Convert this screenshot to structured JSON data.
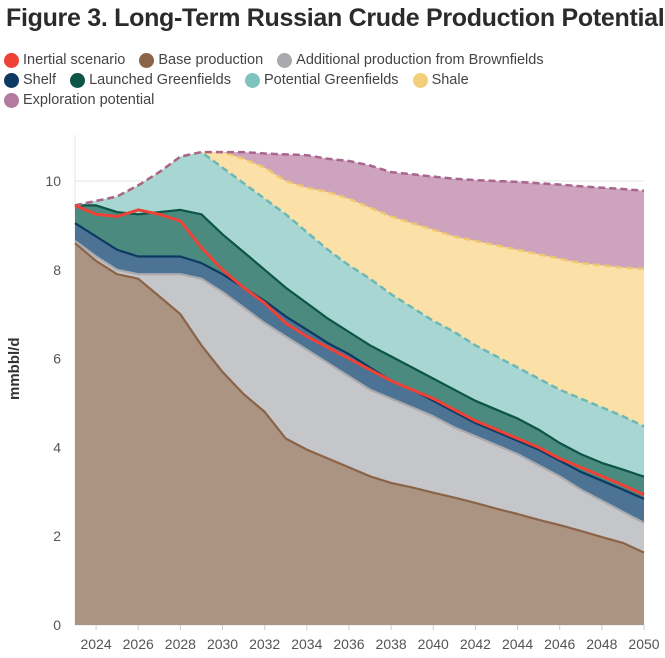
{
  "chart_data": {
    "type": "area",
    "title": "Figure 3. Long-Term Russian Crude Production Potential",
    "xlabel": "",
    "ylabel": "mmbbl/d",
    "xlim": [
      2023,
      2050
    ],
    "ylim": [
      0,
      10.8
    ],
    "x_ticks": [
      "2024",
      "2026",
      "2028",
      "2030",
      "2032",
      "2034",
      "2036",
      "2038",
      "2040",
      "2042",
      "2044",
      "2046",
      "2048",
      "2050"
    ],
    "y_ticks": [
      "0",
      "2",
      "4",
      "6",
      "8",
      "10"
    ],
    "grid": true,
    "legend_position": "top",
    "x": [
      2023,
      2024,
      2025,
      2026,
      2027,
      2028,
      2029,
      2030,
      2031,
      2032,
      2033,
      2034,
      2035,
      2036,
      2037,
      2038,
      2039,
      2040,
      2041,
      2042,
      2043,
      2044,
      2045,
      2046,
      2047,
      2048,
      2049,
      2050
    ],
    "stacked_tops_note": "values are cumulative top of each band",
    "series": [
      {
        "name": "Base production",
        "color": "#8b6448",
        "fill": "#ab9482",
        "values": [
          8.6,
          8.2,
          7.9,
          7.8,
          7.4,
          7.0,
          6.3,
          5.7,
          5.2,
          4.8,
          4.2,
          3.95,
          3.75,
          3.55,
          3.35,
          3.2,
          3.1,
          2.98,
          2.87,
          2.75,
          2.62,
          2.5,
          2.37,
          2.25,
          2.12,
          1.98,
          1.85,
          1.63
        ]
      },
      {
        "name": "Additional production from Brownfields",
        "color": "#a9aaae",
        "fill": "#c5c6c9",
        "values": [
          8.65,
          8.3,
          8.0,
          7.9,
          7.9,
          7.9,
          7.8,
          7.5,
          7.15,
          6.8,
          6.5,
          6.2,
          5.9,
          5.6,
          5.3,
          5.1,
          4.9,
          4.7,
          4.45,
          4.25,
          4.05,
          3.85,
          3.6,
          3.35,
          3.05,
          2.8,
          2.55,
          2.3
        ]
      },
      {
        "name": "Shelf",
        "color": "#0d3a63",
        "fill": "#4c7394",
        "values": [
          9.05,
          8.75,
          8.45,
          8.3,
          8.3,
          8.3,
          8.15,
          7.9,
          7.6,
          7.3,
          6.95,
          6.65,
          6.35,
          6.1,
          5.8,
          5.5,
          5.3,
          5.05,
          4.8,
          4.55,
          4.35,
          4.15,
          3.95,
          3.7,
          3.45,
          3.25,
          3.05,
          2.84
        ]
      },
      {
        "name": "Launched Greenfields",
        "color": "#0d5547",
        "fill": "#4a8a7f",
        "values": [
          9.45,
          9.45,
          9.3,
          9.25,
          9.3,
          9.35,
          9.25,
          8.8,
          8.4,
          8.0,
          7.6,
          7.25,
          6.9,
          6.6,
          6.3,
          6.05,
          5.8,
          5.55,
          5.3,
          5.05,
          4.85,
          4.65,
          4.4,
          4.1,
          3.85,
          3.65,
          3.5,
          3.34
        ]
      },
      {
        "name": "Potential Greenfields",
        "color": "#6cb8b4",
        "fill": "#a8d7d3",
        "values": [
          9.45,
          9.55,
          9.65,
          9.9,
          10.2,
          10.55,
          10.65,
          10.3,
          9.95,
          9.6,
          9.25,
          8.85,
          8.45,
          8.1,
          7.8,
          7.45,
          7.15,
          6.85,
          6.6,
          6.3,
          6.05,
          5.8,
          5.55,
          5.3,
          5.1,
          4.9,
          4.7,
          4.47
        ]
      },
      {
        "name": "Shale",
        "color": "#f0c870",
        "fill": "#fbe1a8",
        "values": [
          9.45,
          9.55,
          9.65,
          9.9,
          10.2,
          10.55,
          10.65,
          10.65,
          10.5,
          10.3,
          10.0,
          9.85,
          9.75,
          9.6,
          9.4,
          9.2,
          9.05,
          8.9,
          8.75,
          8.65,
          8.55,
          8.45,
          8.35,
          8.25,
          8.15,
          8.1,
          8.05,
          8.02
        ]
      },
      {
        "name": "Exploration potential",
        "color": "#a8668e",
        "fill": "#cda3bd",
        "values": [
          9.45,
          9.55,
          9.65,
          9.9,
          10.2,
          10.55,
          10.65,
          10.65,
          10.65,
          10.62,
          10.6,
          10.58,
          10.5,
          10.45,
          10.35,
          10.2,
          10.15,
          10.1,
          10.05,
          10.02,
          10.0,
          9.98,
          9.95,
          9.92,
          9.88,
          9.85,
          9.82,
          9.78
        ]
      }
    ],
    "line_series": [
      {
        "name": "Inertial scenario",
        "color": "#ef4136",
        "values": [
          9.45,
          9.25,
          9.2,
          9.35,
          9.25,
          9.1,
          8.5,
          8.0,
          7.6,
          7.25,
          6.8,
          6.5,
          6.25,
          6.0,
          5.75,
          5.5,
          5.3,
          5.1,
          4.85,
          4.6,
          4.4,
          4.2,
          4.0,
          3.75,
          3.55,
          3.35,
          3.15,
          2.93
        ]
      }
    ]
  },
  "legend": {
    "rows": [
      [
        {
          "label": "Inertial scenario",
          "color": "#ef4136"
        },
        {
          "label": "Base production",
          "color": "#8b6448"
        },
        {
          "label": "Additional production from Brownfields",
          "color": "#a9aaae"
        }
      ],
      [
        {
          "label": "Shelf",
          "color": "#0d3a63"
        },
        {
          "label": "Launched Greenfields",
          "color": "#0d5547"
        },
        {
          "label": "Potential Greenfields",
          "color": "#7fc3bf"
        },
        {
          "label": "Shale",
          "color": "#f3cf7c"
        }
      ],
      [
        {
          "label": "Exploration potential",
          "color": "#b57aa0"
        }
      ]
    ]
  }
}
